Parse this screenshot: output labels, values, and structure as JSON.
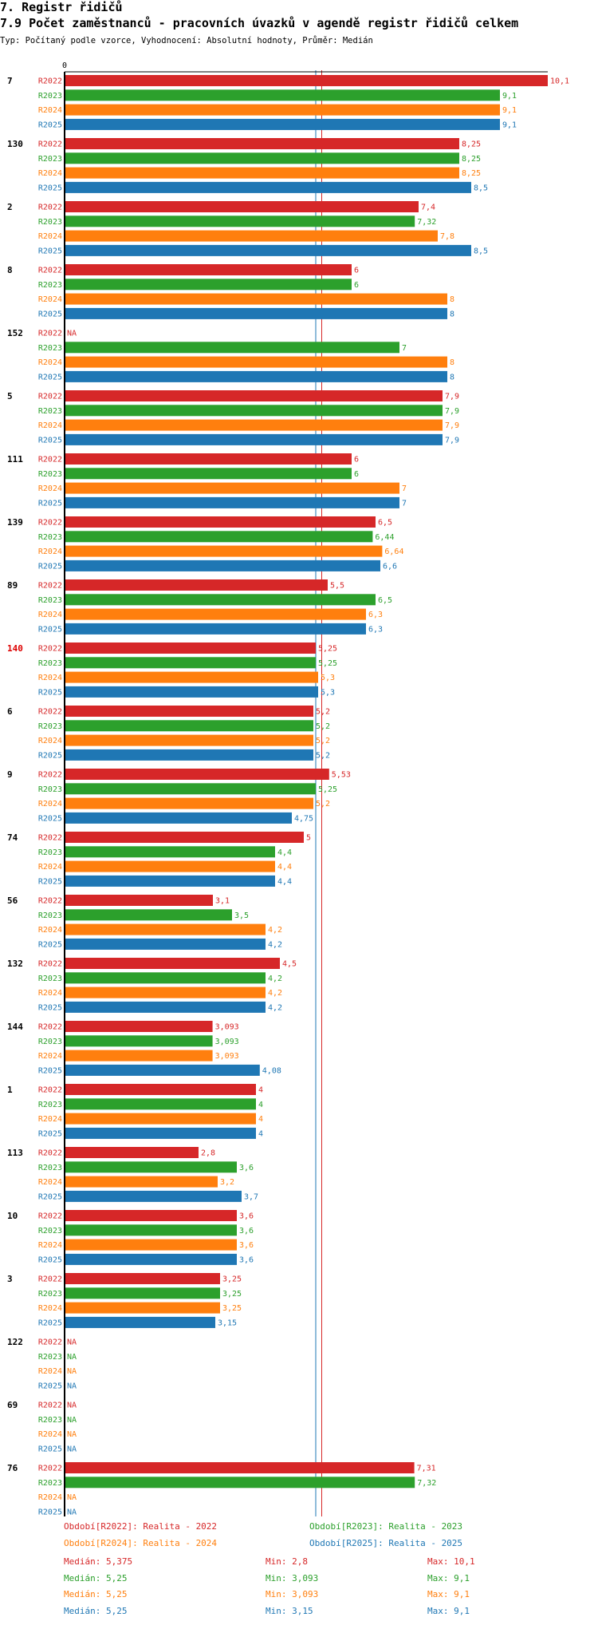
{
  "header": {
    "section": "7. Registr řidičů",
    "title": "7.9 Počet zaměstnanců - pracovních úvazků v agendě registr řidičů celkem",
    "subtitle": "Typ: Počítaný podle vzorce, Vyhodnocení: Absolutní hodnoty, Průměr: Medián"
  },
  "colors": {
    "R2022": "#d62728",
    "R2023": "#2ca02c",
    "R2024": "#ff7f0e",
    "R2025": "#1f77b4",
    "highlight_group": "#dd0000"
  },
  "chart_data": {
    "type": "bar",
    "orientation": "horizontal",
    "title": "7.9 Počet zaměstnanců - pracovních úvazků v agendě registr řidičů celkem",
    "axis_origin_label": "0",
    "xlim": [
      0,
      10.1
    ],
    "na_label": "NA",
    "series_names": [
      "R2022",
      "R2023",
      "R2024",
      "R2025"
    ],
    "highlighted_group": "140",
    "reference_lines": [
      {
        "series": "R2025",
        "value": 5.25
      },
      {
        "series": "R2022",
        "value": 5.375
      }
    ],
    "groups": [
      {
        "label": "7",
        "values": [
          10.1,
          9.1,
          9.1,
          9.1
        ],
        "labels": [
          "10,1",
          "9,1",
          "9,1",
          "9,1"
        ]
      },
      {
        "label": "130",
        "values": [
          8.25,
          8.25,
          8.25,
          8.5
        ],
        "labels": [
          "8,25",
          "8,25",
          "8,25",
          "8,5"
        ]
      },
      {
        "label": "2",
        "values": [
          7.4,
          7.32,
          7.8,
          8.5
        ],
        "labels": [
          "7,4",
          "7,32",
          "7,8",
          "8,5"
        ]
      },
      {
        "label": "8",
        "values": [
          6,
          6,
          8,
          8
        ],
        "labels": [
          "6",
          "6",
          "8",
          "8"
        ]
      },
      {
        "label": "152",
        "values": [
          null,
          7,
          8,
          8
        ],
        "labels": [
          "NA",
          "7",
          "8",
          "8"
        ]
      },
      {
        "label": "5",
        "values": [
          7.9,
          7.9,
          7.9,
          7.9
        ],
        "labels": [
          "7,9",
          "7,9",
          "7,9",
          "7,9"
        ]
      },
      {
        "label": "111",
        "values": [
          6,
          6,
          7,
          7
        ],
        "labels": [
          "6",
          "6",
          "7",
          "7"
        ]
      },
      {
        "label": "139",
        "values": [
          6.5,
          6.44,
          6.64,
          6.6
        ],
        "labels": [
          "6,5",
          "6,44",
          "6,64",
          "6,6"
        ]
      },
      {
        "label": "89",
        "values": [
          5.5,
          6.5,
          6.3,
          6.3
        ],
        "labels": [
          "5,5",
          "6,5",
          "6,3",
          "6,3"
        ]
      },
      {
        "label": "140",
        "values": [
          5.25,
          5.25,
          5.3,
          5.3
        ],
        "labels": [
          "5,25",
          "5,25",
          "5,3",
          "5,3"
        ]
      },
      {
        "label": "6",
        "values": [
          5.2,
          5.2,
          5.2,
          5.2
        ],
        "labels": [
          "5,2",
          "5,2",
          "5,2",
          "5,2"
        ]
      },
      {
        "label": "9",
        "values": [
          5.53,
          5.25,
          5.2,
          4.75
        ],
        "labels": [
          "5,53",
          "5,25",
          "5,2",
          "4,75"
        ]
      },
      {
        "label": "74",
        "values": [
          5,
          4.4,
          4.4,
          4.4
        ],
        "labels": [
          "5",
          "4,4",
          "4,4",
          "4,4"
        ]
      },
      {
        "label": "56",
        "values": [
          3.1,
          3.5,
          4.2,
          4.2
        ],
        "labels": [
          "3,1",
          "3,5",
          "4,2",
          "4,2"
        ]
      },
      {
        "label": "132",
        "values": [
          4.5,
          4.2,
          4.2,
          4.2
        ],
        "labels": [
          "4,5",
          "4,2",
          "4,2",
          "4,2"
        ]
      },
      {
        "label": "144",
        "values": [
          3.093,
          3.093,
          3.093,
          4.08
        ],
        "labels": [
          "3,093",
          "3,093",
          "3,093",
          "4,08"
        ]
      },
      {
        "label": "1",
        "values": [
          4,
          4,
          4,
          4
        ],
        "labels": [
          "4",
          "4",
          "4",
          "4"
        ]
      },
      {
        "label": "113",
        "values": [
          2.8,
          3.6,
          3.2,
          3.7
        ],
        "labels": [
          "2,8",
          "3,6",
          "3,2",
          "3,7"
        ]
      },
      {
        "label": "10",
        "values": [
          3.6,
          3.6,
          3.6,
          3.6
        ],
        "labels": [
          "3,6",
          "3,6",
          "3,6",
          "3,6"
        ]
      },
      {
        "label": "3",
        "values": [
          3.25,
          3.25,
          3.25,
          3.15
        ],
        "labels": [
          "3,25",
          "3,25",
          "3,25",
          "3,15"
        ]
      },
      {
        "label": "122",
        "values": [
          null,
          null,
          null,
          null
        ],
        "labels": [
          "NA",
          "NA",
          "NA",
          "NA"
        ]
      },
      {
        "label": "69",
        "values": [
          null,
          null,
          null,
          null
        ],
        "labels": [
          "NA",
          "NA",
          "NA",
          "NA"
        ]
      },
      {
        "label": "76",
        "values": [
          7.31,
          7.32,
          null,
          null
        ],
        "labels": [
          "7,31",
          "7,32",
          "NA",
          "NA"
        ]
      }
    ]
  },
  "legend": [
    {
      "text": "Období[R2022]: Realita - 2022",
      "series": "R2022"
    },
    {
      "text": "Období[R2023]: Realita - 2023",
      "series": "R2023"
    },
    {
      "text": "Období[R2024]: Realita - 2024",
      "series": "R2024"
    },
    {
      "text": "Období[R2025]: Realita - 2025",
      "series": "R2025"
    }
  ],
  "stats": [
    {
      "series": "R2022",
      "median": "Medián: 5,375",
      "min": "Min: 2,8",
      "max": "Max: 10,1"
    },
    {
      "series": "R2023",
      "median": "Medián: 5,25",
      "min": "Min: 3,093",
      "max": "Max: 9,1"
    },
    {
      "series": "R2024",
      "median": "Medián: 5,25",
      "min": "Min: 3,093",
      "max": "Max: 9,1"
    },
    {
      "series": "R2025",
      "median": "Medián: 5,25",
      "min": "Min: 3,15",
      "max": "Max: 9,1"
    }
  ]
}
